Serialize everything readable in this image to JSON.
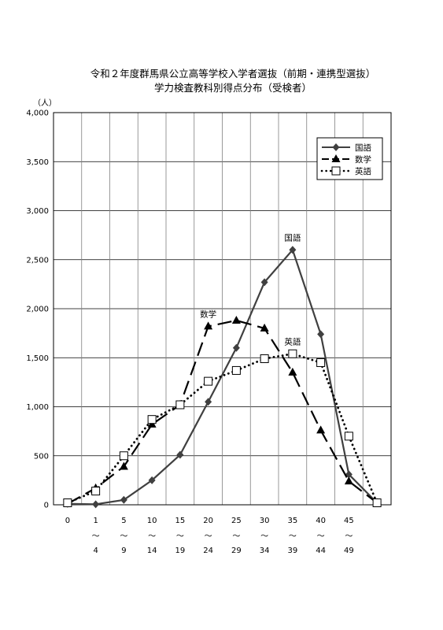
{
  "chart_data": {
    "type": "line",
    "title": [
      "令和２年度群馬県公立高等学校入学者選抜（前期・連携型選抜）",
      "学力検査教科別得点分布（受検者）"
    ],
    "ylabel": "（人）",
    "ylim": [
      0,
      4000
    ],
    "yticks": [
      "0",
      "500",
      "1,000",
      "1,500",
      "2,000",
      "2,500",
      "3,000",
      "3,500",
      "4,000"
    ],
    "categories": [
      {
        "from": "0",
        "tilde": "",
        "to": ""
      },
      {
        "from": "1",
        "tilde": "～",
        "to": "4"
      },
      {
        "from": "5",
        "tilde": "～",
        "to": "9"
      },
      {
        "from": "10",
        "tilde": "～",
        "to": "14"
      },
      {
        "from": "15",
        "tilde": "～",
        "to": "19"
      },
      {
        "from": "20",
        "tilde": "～",
        "to": "24"
      },
      {
        "from": "25",
        "tilde": "～",
        "to": "29"
      },
      {
        "from": "30",
        "tilde": "～",
        "to": "34"
      },
      {
        "from": "35",
        "tilde": "～",
        "to": "39"
      },
      {
        "from": "40",
        "tilde": "～",
        "to": "44"
      },
      {
        "from": "45",
        "tilde": "～",
        "to": "49"
      },
      {
        "from": "",
        "tilde": "",
        "to": ""
      }
    ],
    "series": [
      {
        "name": "国語",
        "marker": "diamond",
        "dash": "solid",
        "color": "#404040",
        "values": [
          10,
          5,
          50,
          250,
          510,
          1050,
          1600,
          2270,
          2600,
          1740,
          310,
          20
        ]
      },
      {
        "name": "数学",
        "marker": "triangle",
        "dash": "long-dash",
        "color": "#000000",
        "values": [
          10,
          170,
          390,
          820,
          1020,
          1820,
          1880,
          1800,
          1350,
          760,
          240,
          20
        ]
      },
      {
        "name": "英語",
        "marker": "square-open",
        "dash": "dotted",
        "color": "#000000",
        "values": [
          20,
          140,
          500,
          870,
          1020,
          1260,
          1370,
          1490,
          1540,
          1450,
          700,
          20
        ]
      }
    ],
    "annotations": [
      {
        "text": "国語",
        "series": 0,
        "index": 8
      },
      {
        "text": "数学",
        "series": 1,
        "index": 5
      },
      {
        "text": "英語",
        "series": 2,
        "index": 8
      }
    ],
    "grid": true,
    "legend_position": "top-right"
  }
}
